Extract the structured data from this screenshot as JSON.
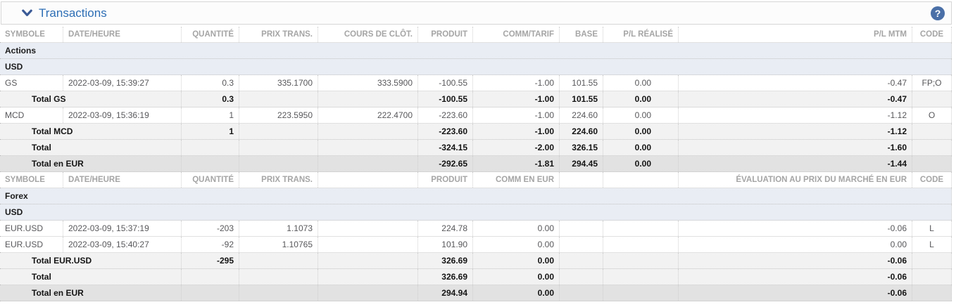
{
  "title_bar": {
    "title": "Transactions",
    "help_label": "?"
  },
  "colors": {
    "title_blue": "#2d6eb5",
    "chevron_navy": "#3b5b97",
    "help_circle_blue": "#4a6fa7",
    "section_row_bg": "#e9edf4",
    "subtotal_row_bg": "#f2f2f2",
    "total_eur_row_bg": "#e2e2e2",
    "header_text_gray": "#a5a5a5"
  },
  "tables": [
    {
      "name": "actions",
      "rows": [
        {
          "type": "header",
          "cells": [
            "SYMBOLE",
            "DATE/HEURE",
            "QUANTITÉ",
            "PRIX TRANS.",
            "COURS DE CLÔT.",
            "PRODUIT",
            "COMM/TARIF",
            "BASE",
            "P/L RÉALISÉ",
            "P/L MTM",
            "CODE"
          ]
        },
        {
          "type": "section",
          "label": "Actions"
        },
        {
          "type": "currency",
          "label": "USD"
        },
        {
          "type": "data",
          "cells": [
            "GS",
            "2022-03-09, 15:39:27",
            "0.3",
            "335.1700",
            "333.5900",
            "-100.55",
            "-1.00",
            "101.55",
            "0.00",
            "-0.47",
            "FP;O"
          ]
        },
        {
          "type": "subtotal",
          "label": "Total GS",
          "cells": [
            "0.3",
            "",
            "",
            "-100.55",
            "-1.00",
            "101.55",
            "0.00",
            "-0.47",
            ""
          ]
        },
        {
          "type": "data",
          "cells": [
            "MCD",
            "2022-03-09, 15:36:19",
            "1",
            "223.5950",
            "222.4700",
            "-223.60",
            "-1.00",
            "224.60",
            "0.00",
            "-1.12",
            "O"
          ]
        },
        {
          "type": "subtotal",
          "label": "Total MCD",
          "cells": [
            "1",
            "",
            "",
            "-223.60",
            "-1.00",
            "224.60",
            "0.00",
            "-1.12",
            ""
          ]
        },
        {
          "type": "subtotal",
          "label": "Total",
          "cells": [
            "",
            "",
            "",
            "-324.15",
            "-2.00",
            "326.15",
            "0.00",
            "-1.60",
            ""
          ]
        },
        {
          "type": "total_eur",
          "label": "Total en EUR",
          "cells": [
            "",
            "",
            "",
            "-292.65",
            "-1.81",
            "294.45",
            "0.00",
            "-1.44",
            ""
          ]
        }
      ]
    },
    {
      "name": "forex",
      "rows": [
        {
          "type": "header",
          "cells": [
            "SYMBOLE",
            "DATE/HEURE",
            "QUANTITÉ",
            "PRIX TRANS.",
            "",
            "PRODUIT",
            "COMM EN EUR",
            "",
            "",
            "ÉVALUATION AU PRIX DU MARCHÉ EN EUR",
            "CODE"
          ]
        },
        {
          "type": "section",
          "label": "Forex"
        },
        {
          "type": "currency",
          "label": "USD"
        },
        {
          "type": "data",
          "cells": [
            "EUR.USD",
            "2022-03-09, 15:37:19",
            "-203",
            "1.1073",
            "",
            "224.78",
            "0.00",
            "",
            "",
            "-0.06",
            "L"
          ]
        },
        {
          "type": "data",
          "cells": [
            "EUR.USD",
            "2022-03-09, 15:40:27",
            "-92",
            "1.10765",
            "",
            "101.90",
            "0.00",
            "",
            "",
            "0.00",
            "L"
          ]
        },
        {
          "type": "subtotal",
          "label": "Total EUR.USD",
          "cells": [
            "-295",
            "",
            "",
            "326.69",
            "0.00",
            "",
            "",
            "-0.06",
            ""
          ]
        },
        {
          "type": "subtotal",
          "label": "Total",
          "cells": [
            "",
            "",
            "",
            "326.69",
            "0.00",
            "",
            "",
            "-0.06",
            ""
          ]
        },
        {
          "type": "total_eur",
          "label": "Total en EUR",
          "cells": [
            "",
            "",
            "",
            "294.94",
            "0.00",
            "",
            "",
            "-0.06",
            ""
          ]
        }
      ]
    }
  ]
}
